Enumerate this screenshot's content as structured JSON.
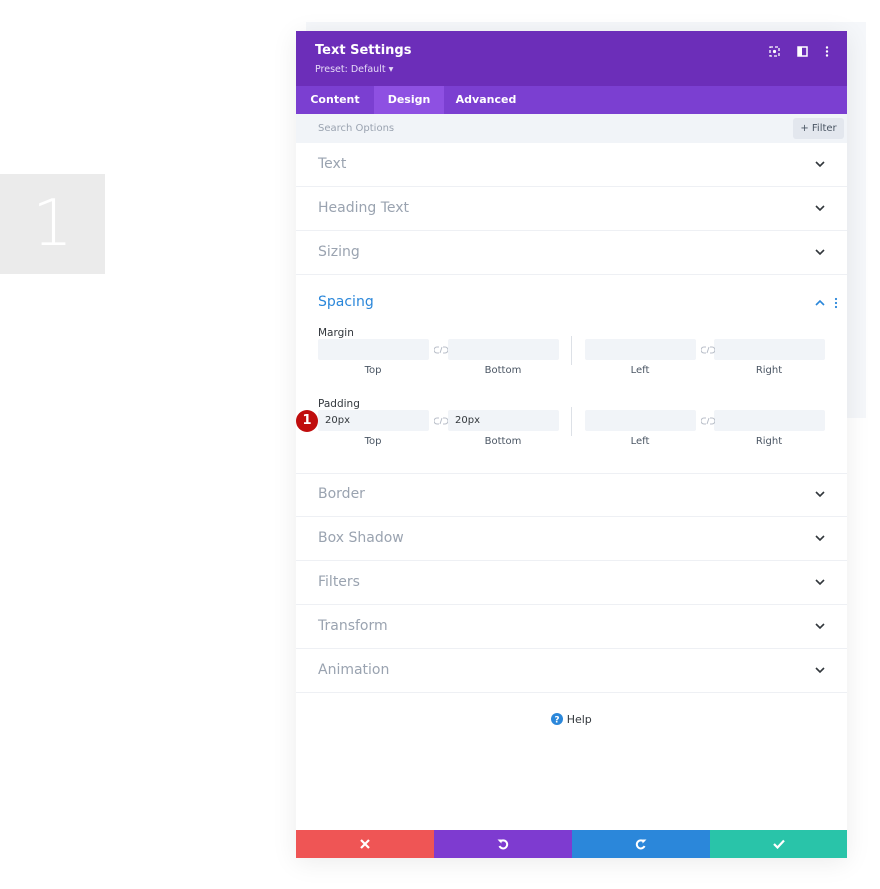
{
  "background_card": {
    "number": "1"
  },
  "panel": {
    "title": "Text Settings",
    "preset": "Preset: Default",
    "tabs": [
      "Content",
      "Design",
      "Advanced"
    ],
    "search_placeholder": "Search Options",
    "filter_button": "Filter",
    "sections_before": [
      "Text",
      "Heading Text",
      "Sizing"
    ],
    "open_section": {
      "title": "Spacing",
      "margin": {
        "label": "Margin",
        "field_labels": [
          "Top",
          "Bottom",
          "Left",
          "Right"
        ]
      },
      "padding": {
        "label": "Padding",
        "values": [
          "20px",
          "20px"
        ],
        "field_labels": [
          "Top",
          "Bottom",
          "Left",
          "Right"
        ],
        "badge": "1"
      }
    },
    "sections_after": [
      "Border",
      "Box Shadow",
      "Filters",
      "Transform",
      "Animation"
    ],
    "help": "Help"
  }
}
